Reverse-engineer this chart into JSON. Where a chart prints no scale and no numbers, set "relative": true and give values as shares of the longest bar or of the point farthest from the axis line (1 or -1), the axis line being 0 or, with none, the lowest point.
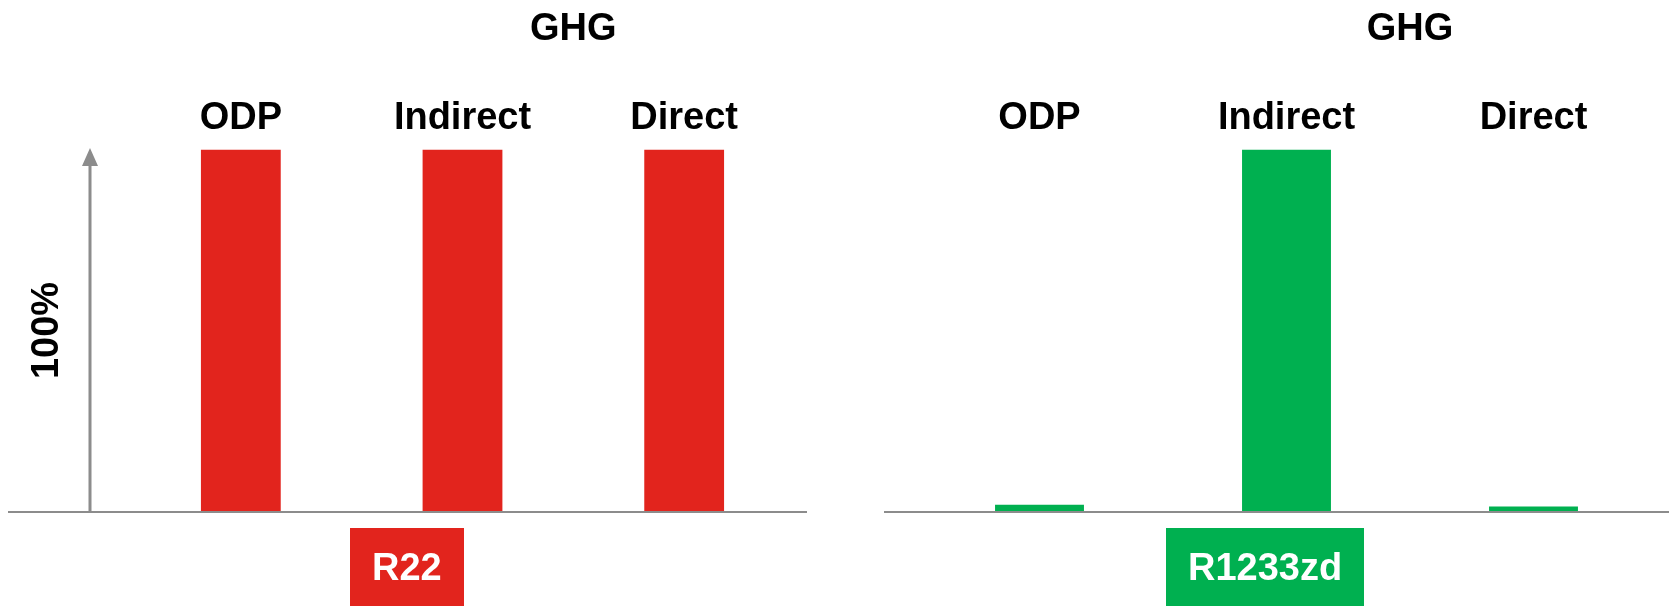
{
  "chart_data": [
    {
      "type": "bar",
      "relative": true,
      "categories": [
        "ODP",
        "Indirect",
        "Direct"
      ],
      "values": [
        1,
        1,
        1
      ],
      "color": "#e2241d",
      "ylabel": "100%",
      "xlabel": "R22",
      "annotations": [
        "GHG"
      ],
      "grid": false,
      "legend": false
    },
    {
      "type": "bar",
      "relative": true,
      "categories": [
        "ODP",
        "Indirect",
        "Direct"
      ],
      "values": [
        0.02,
        1,
        0.015
      ],
      "color": "#00b050",
      "xlabel": "R1233zd",
      "annotations": [
        "GHG"
      ],
      "grid": false,
      "legend": false
    }
  ]
}
